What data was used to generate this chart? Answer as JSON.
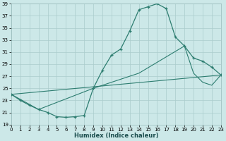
{
  "xlabel": "Humidex (Indice chaleur)",
  "background_color": "#cce8e8",
  "grid_color": "#aacccc",
  "line_color": "#2d7d70",
  "xlim": [
    0,
    23
  ],
  "ylim": [
    19,
    39
  ],
  "xtick_labels": [
    "0",
    "1",
    "2",
    "3",
    "4",
    "5",
    "6",
    "7",
    "8",
    "9",
    "10",
    "11",
    "12",
    "13",
    "14",
    "15",
    "16",
    "17",
    "18",
    "19",
    "20",
    "21",
    "22",
    "23"
  ],
  "xticks": [
    0,
    1,
    2,
    3,
    4,
    5,
    6,
    7,
    8,
    9,
    10,
    11,
    12,
    13,
    14,
    15,
    16,
    17,
    18,
    19,
    20,
    21,
    22,
    23
  ],
  "yticks": [
    19,
    21,
    23,
    25,
    27,
    29,
    31,
    33,
    35,
    37,
    39
  ],
  "curve_x": [
    0,
    1,
    2,
    3,
    4,
    5,
    6,
    7,
    8,
    9,
    10,
    11,
    12,
    13,
    14,
    15,
    16,
    17,
    18,
    19,
    20,
    21,
    22,
    23
  ],
  "curve_y": [
    24.0,
    23.0,
    22.2,
    21.5,
    21.0,
    20.3,
    20.2,
    20.3,
    20.5,
    25.0,
    28.0,
    30.5,
    31.5,
    34.5,
    38.0,
    38.5,
    39.0,
    38.2,
    33.5,
    32.0,
    30.0,
    29.5,
    28.5,
    27.2
  ],
  "line2_x": [
    0,
    3,
    9,
    12,
    14,
    19,
    20,
    21,
    22,
    23
  ],
  "line2_y": [
    24.0,
    21.5,
    25.0,
    26.5,
    27.5,
    32.0,
    27.5,
    26.0,
    25.5,
    27.2
  ],
  "line3_x": [
    0,
    23
  ],
  "line3_y": [
    24.0,
    27.2
  ]
}
